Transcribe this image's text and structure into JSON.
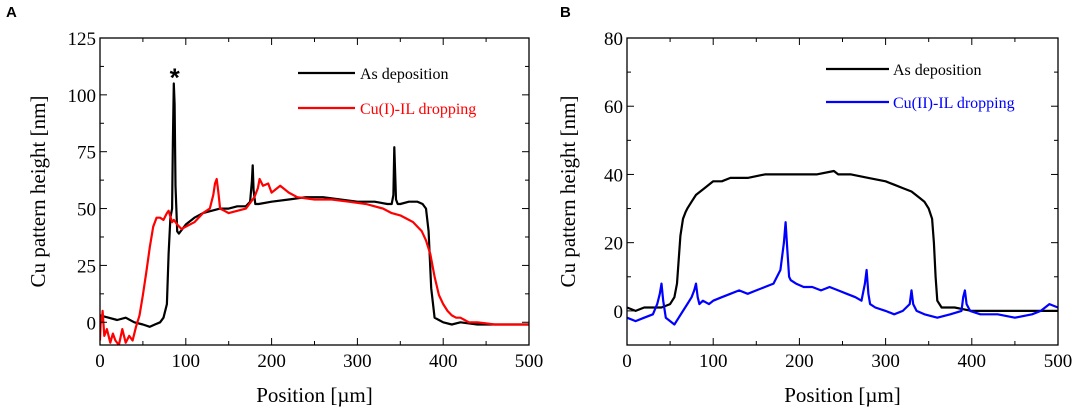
{
  "figure": {
    "panels": [
      {
        "id": "A",
        "letter": "A"
      },
      {
        "id": "B",
        "letter": "B"
      }
    ]
  },
  "chart_data": [
    {
      "type": "line",
      "panel": "A",
      "xlabel": "Position [µm]",
      "ylabel": "Cu pattern height [nm]",
      "xlim": [
        0,
        500
      ],
      "ylim": [
        -10,
        125
      ],
      "xticks": [
        0,
        100,
        200,
        300,
        400,
        500
      ],
      "yticks": [
        0,
        25,
        50,
        75,
        100,
        125
      ],
      "legend_position": "top-right",
      "annotations": [
        {
          "text": "*",
          "x": 87,
          "y": 109
        }
      ],
      "series": [
        {
          "name": "As deposition",
          "color": "#000000",
          "x": [
            0,
            10,
            20,
            30,
            40,
            50,
            58,
            64,
            70,
            74,
            78,
            80,
            82,
            84,
            85,
            86,
            87,
            88,
            90,
            92,
            96,
            100,
            110,
            120,
            130,
            140,
            150,
            160,
            170,
            175,
            177,
            178,
            179,
            181,
            185,
            200,
            220,
            240,
            260,
            280,
            300,
            320,
            335,
            340,
            342,
            343,
            344,
            345,
            347,
            350,
            360,
            370,
            376,
            380,
            383,
            386,
            390,
            395,
            400,
            410,
            420,
            440,
            460,
            480,
            500
          ],
          "y": [
            3,
            2,
            1,
            2,
            0,
            -1,
            -2,
            -1,
            0,
            2,
            8,
            30,
            46,
            50,
            80,
            105,
            96,
            60,
            40,
            39,
            41,
            43,
            46,
            48,
            49,
            50,
            50,
            51,
            51,
            53,
            62,
            69,
            58,
            52,
            52,
            53,
            54,
            55,
            55,
            54,
            53,
            53,
            52,
            52,
            56,
            77,
            65,
            54,
            52,
            52,
            53,
            53,
            52,
            50,
            40,
            15,
            2,
            1,
            0,
            -1,
            0,
            -1,
            -1,
            -1,
            -1
          ]
        },
        {
          "name": "Cu(I)-IL dropping",
          "color": "#ff0000",
          "x": [
            0,
            1,
            2,
            3,
            5,
            8,
            12,
            15,
            18,
            22,
            26,
            30,
            34,
            38,
            42,
            46,
            50,
            54,
            58,
            62,
            66,
            70,
            74,
            78,
            80,
            84,
            86,
            90,
            95,
            100,
            110,
            120,
            128,
            132,
            134,
            136,
            138,
            140,
            145,
            150,
            160,
            170,
            180,
            184,
            186,
            190,
            196,
            200,
            210,
            220,
            230,
            250,
            270,
            290,
            310,
            330,
            340,
            350,
            360,
            365,
            370,
            375,
            380,
            385,
            390,
            395,
            400,
            405,
            410,
            415,
            420,
            425,
            430,
            440,
            460,
            480,
            500
          ],
          "y": [
            -8,
            2,
            0,
            5,
            -6,
            -3,
            -9,
            -5,
            -8,
            -10,
            -3,
            -9,
            -6,
            -8,
            -2,
            3,
            12,
            22,
            33,
            42,
            46,
            46,
            45,
            48,
            49,
            44,
            45,
            43,
            41,
            42,
            44,
            48,
            50,
            56,
            61,
            63,
            57,
            50,
            49,
            48,
            49,
            50,
            55,
            59,
            63,
            60,
            61,
            57,
            60,
            57,
            55,
            54,
            54,
            53,
            52,
            50,
            48,
            47,
            45,
            44,
            42,
            40,
            36,
            30,
            20,
            12,
            8,
            5,
            3,
            2,
            2,
            1,
            0,
            0,
            -1,
            -1,
            -1
          ]
        }
      ]
    },
    {
      "type": "line",
      "panel": "B",
      "xlabel": "Position [µm]",
      "ylabel": "Cu pattern height [nm]",
      "xlim": [
        0,
        500
      ],
      "ylim": [
        -10,
        80
      ],
      "xticks": [
        0,
        100,
        200,
        300,
        400,
        500
      ],
      "yticks": [
        0,
        20,
        40,
        60,
        80
      ],
      "legend_position": "top-right",
      "series": [
        {
          "name": "As deposition",
          "color": "#000000",
          "x": [
            0,
            10,
            20,
            30,
            40,
            50,
            55,
            58,
            60,
            62,
            65,
            68,
            70,
            75,
            80,
            90,
            100,
            110,
            120,
            140,
            160,
            180,
            200,
            220,
            240,
            245,
            250,
            260,
            280,
            300,
            310,
            320,
            330,
            340,
            345,
            350,
            354,
            356,
            358,
            360,
            365,
            380,
            400,
            420,
            440,
            460,
            480,
            500
          ],
          "y": [
            1,
            0,
            1,
            1,
            1,
            2,
            4,
            8,
            15,
            22,
            27,
            29,
            30,
            32,
            34,
            36,
            38,
            38,
            39,
            39,
            40,
            40,
            40,
            40,
            41,
            40,
            40,
            40,
            39,
            38,
            37,
            36,
            35,
            33,
            32,
            30,
            27,
            20,
            10,
            3,
            1,
            1,
            0,
            0,
            0,
            0,
            0,
            0
          ]
        },
        {
          "name": "Cu(II)-IL dropping",
          "color": "#0000ff",
          "x": [
            0,
            10,
            20,
            30,
            35,
            38,
            40,
            42,
            45,
            50,
            55,
            60,
            65,
            70,
            75,
            78,
            80,
            82,
            84,
            88,
            95,
            100,
            110,
            120,
            130,
            140,
            150,
            160,
            170,
            178,
            182,
            184,
            186,
            188,
            190,
            196,
            205,
            215,
            225,
            235,
            245,
            255,
            265,
            272,
            276,
            278,
            280,
            282,
            288,
            300,
            310,
            320,
            328,
            330,
            332,
            336,
            345,
            360,
            375,
            388,
            390,
            392,
            394,
            398,
            410,
            430,
            450,
            470,
            480,
            490,
            500
          ],
          "y": [
            -2,
            -3,
            -2,
            -1,
            2,
            5,
            8,
            3,
            -2,
            -3,
            -4,
            -2,
            0,
            2,
            4,
            6,
            8,
            4,
            2,
            3,
            2,
            3,
            4,
            5,
            6,
            5,
            6,
            7,
            8,
            12,
            20,
            26,
            18,
            10,
            9,
            8,
            7,
            7,
            6,
            7,
            6,
            5,
            4,
            3,
            8,
            12,
            5,
            2,
            1,
            0,
            -1,
            0,
            2,
            6,
            2,
            0,
            -1,
            -2,
            -1,
            0,
            4,
            6,
            2,
            0,
            -1,
            -1,
            -2,
            -1,
            0,
            2,
            1
          ]
        }
      ]
    }
  ]
}
